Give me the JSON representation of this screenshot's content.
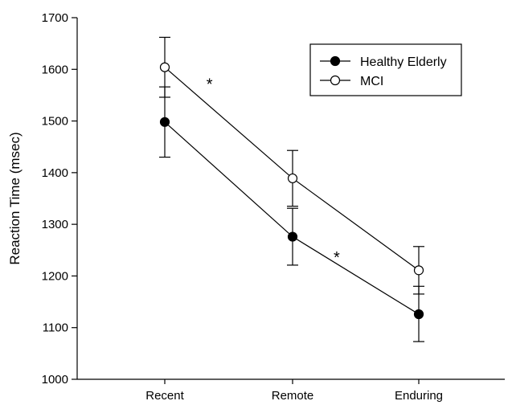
{
  "chart_data": {
    "type": "line",
    "title": "",
    "xlabel": "",
    "ylabel": "Reaction Time (msec)",
    "categories": [
      "Recent",
      "Remote",
      "Enduring"
    ],
    "ylim": [
      1000,
      1700
    ],
    "yticks": [
      "1000",
      "1100",
      "1200",
      "1300",
      "1400",
      "1500",
      "1600",
      "1700"
    ],
    "grid": false,
    "legend_position": "top-right",
    "series": [
      {
        "name": "Healthy Elderly",
        "marker": "filled-circle",
        "values": [
          1498,
          1276,
          1126
        ],
        "err_low": [
          1430,
          1221,
          1073
        ],
        "err_high": [
          1566,
          1331,
          1180
        ]
      },
      {
        "name": "MCI",
        "marker": "open-circle",
        "values": [
          1604,
          1389,
          1211
        ],
        "err_low": [
          1546,
          1335,
          1165
        ],
        "err_high": [
          1662,
          1443,
          1257
        ]
      }
    ],
    "annotations": [
      {
        "text": "*",
        "x": 0.35,
        "y": 1576
      },
      {
        "text": "*",
        "x": 1.35,
        "y": 1241
      }
    ]
  }
}
